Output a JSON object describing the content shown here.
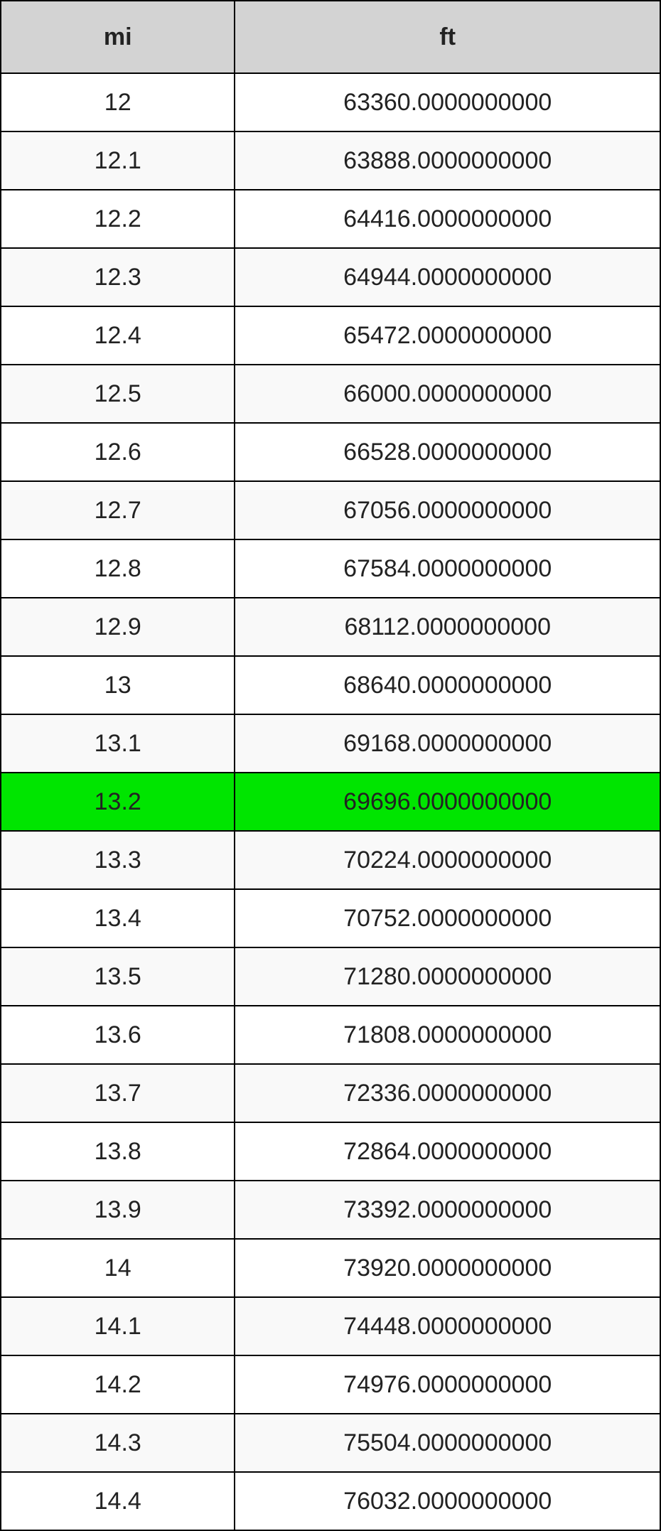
{
  "table": {
    "type": "table",
    "columns": [
      {
        "key": "mi",
        "label": "mi",
        "width_pct": 35.5
      },
      {
        "key": "ft",
        "label": "ft",
        "width_pct": 64.5
      }
    ],
    "header_bg": "#d3d3d3",
    "row_bg_odd": "#ffffff",
    "row_bg_even": "#f9f9f9",
    "highlight_bg": "#00e500",
    "border_color": "#000000",
    "font_family": "Helvetica Neue",
    "header_fontsize_pt": 26,
    "cell_fontsize_pt": 26,
    "rows": [
      {
        "mi": "12",
        "ft": "63360.0000000000",
        "highlight": false
      },
      {
        "mi": "12.1",
        "ft": "63888.0000000000",
        "highlight": false
      },
      {
        "mi": "12.2",
        "ft": "64416.0000000000",
        "highlight": false
      },
      {
        "mi": "12.3",
        "ft": "64944.0000000000",
        "highlight": false
      },
      {
        "mi": "12.4",
        "ft": "65472.0000000000",
        "highlight": false
      },
      {
        "mi": "12.5",
        "ft": "66000.0000000000",
        "highlight": false
      },
      {
        "mi": "12.6",
        "ft": "66528.0000000000",
        "highlight": false
      },
      {
        "mi": "12.7",
        "ft": "67056.0000000000",
        "highlight": false
      },
      {
        "mi": "12.8",
        "ft": "67584.0000000000",
        "highlight": false
      },
      {
        "mi": "12.9",
        "ft": "68112.0000000000",
        "highlight": false
      },
      {
        "mi": "13",
        "ft": "68640.0000000000",
        "highlight": false
      },
      {
        "mi": "13.1",
        "ft": "69168.0000000000",
        "highlight": false
      },
      {
        "mi": "13.2",
        "ft": "69696.0000000000",
        "highlight": true
      },
      {
        "mi": "13.3",
        "ft": "70224.0000000000",
        "highlight": false
      },
      {
        "mi": "13.4",
        "ft": "70752.0000000000",
        "highlight": false
      },
      {
        "mi": "13.5",
        "ft": "71280.0000000000",
        "highlight": false
      },
      {
        "mi": "13.6",
        "ft": "71808.0000000000",
        "highlight": false
      },
      {
        "mi": "13.7",
        "ft": "72336.0000000000",
        "highlight": false
      },
      {
        "mi": "13.8",
        "ft": "72864.0000000000",
        "highlight": false
      },
      {
        "mi": "13.9",
        "ft": "73392.0000000000",
        "highlight": false
      },
      {
        "mi": "14",
        "ft": "73920.0000000000",
        "highlight": false
      },
      {
        "mi": "14.1",
        "ft": "74448.0000000000",
        "highlight": false
      },
      {
        "mi": "14.2",
        "ft": "74976.0000000000",
        "highlight": false
      },
      {
        "mi": "14.3",
        "ft": "75504.0000000000",
        "highlight": false
      },
      {
        "mi": "14.4",
        "ft": "76032.0000000000",
        "highlight": false
      }
    ]
  }
}
